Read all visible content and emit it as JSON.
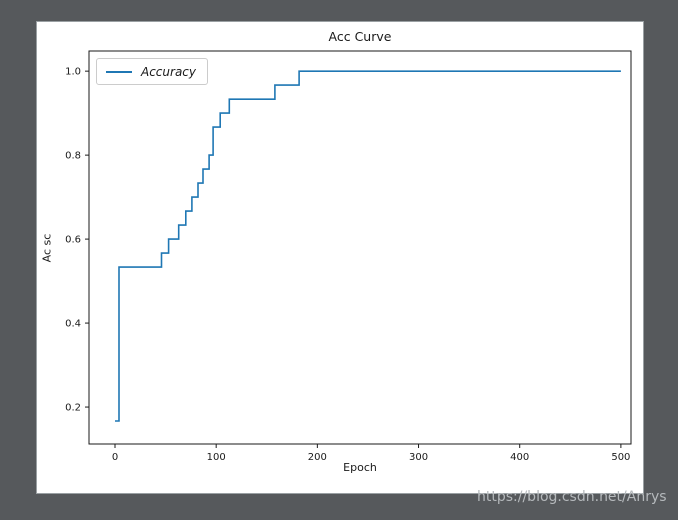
{
  "window": {
    "background": "#56595c",
    "figure_background": "#ffffff",
    "figure_border": "#9aa0a3"
  },
  "watermark": {
    "text": "https://blog.csdn.net/Anrys",
    "color": "#b5b9bc"
  },
  "chart_data": {
    "type": "line",
    "drawstyle": "steps-post",
    "title": "Acc Curve",
    "xlabel": "Epoch",
    "ylabel": "Ac sc",
    "legend": {
      "label": "Accuracy",
      "position": "upper-left",
      "italic": true
    },
    "line_color": "#1f77b4",
    "axis_color": "#1a1a1a",
    "grid": false,
    "xlim": [
      -25.7,
      510
    ],
    "ylim": [
      0.112,
      1.048
    ],
    "xticks": [
      0,
      100,
      200,
      300,
      400,
      500
    ],
    "yticks": [
      0.2,
      0.4,
      0.6,
      0.8,
      1.0
    ],
    "series": [
      {
        "name": "Accuracy",
        "points": [
          [
            0,
            0.1667
          ],
          [
            4,
            0.5333
          ],
          [
            46,
            0.5667
          ],
          [
            53,
            0.6
          ],
          [
            63,
            0.6333
          ],
          [
            70,
            0.6667
          ],
          [
            76,
            0.7
          ],
          [
            82,
            0.7333
          ],
          [
            87,
            0.7667
          ],
          [
            93,
            0.8
          ],
          [
            97,
            0.8667
          ],
          [
            104,
            0.9
          ],
          [
            113,
            0.9333
          ],
          [
            158,
            0.9667
          ],
          [
            182,
            1.0
          ],
          [
            500,
            1.0
          ]
        ]
      }
    ]
  }
}
